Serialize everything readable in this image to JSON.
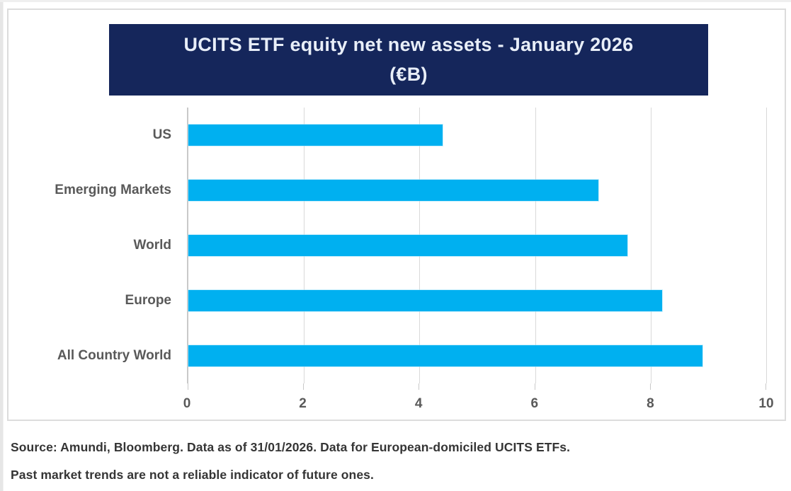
{
  "chart_data": {
    "type": "bar",
    "orientation": "horizontal",
    "title": "UCITS ETF equity net new assets - January 2026 (€B)",
    "title_line1": "UCITS ETF equity net new assets - January 2026",
    "title_line2": "(€B)",
    "categories": [
      "US",
      "Emerging Markets",
      "World",
      "Europe",
      "All Country World"
    ],
    "values": [
      4.4,
      7.1,
      7.6,
      8.2,
      8.9
    ],
    "xlabel": "",
    "ylabel": "",
    "xlim": [
      0,
      10
    ],
    "xticks": [
      0,
      2,
      4,
      6,
      8,
      10
    ],
    "grid": true,
    "legend": "none",
    "bar_color": "#00b0f0",
    "title_bg_color": "#15265b",
    "title_text_color": "#e8eef8"
  },
  "footer": {
    "source_line": "Source: Amundi, Bloomberg. Data as of 31/01/2026. Data for European-domiciled UCITS ETFs.",
    "disclaimer_line": "Past market trends are not a reliable indicator of future ones."
  }
}
